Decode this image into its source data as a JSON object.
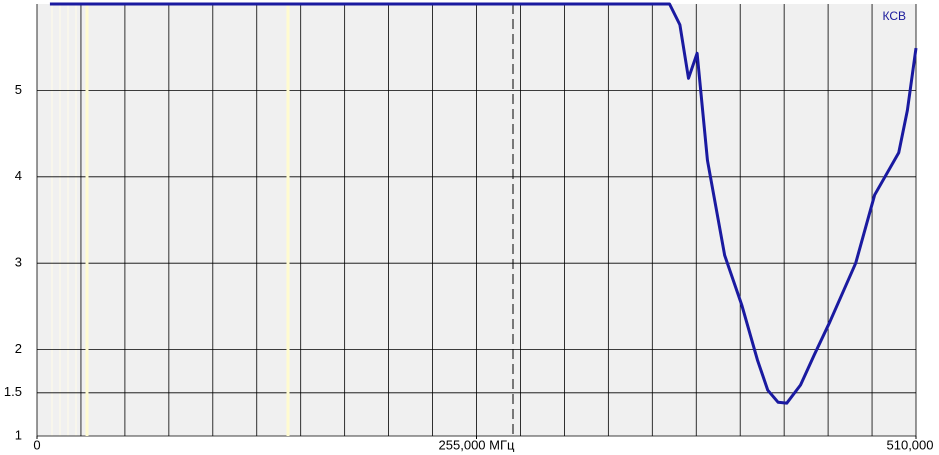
{
  "chart_data": {
    "type": "line",
    "title": "КСВ",
    "title_color": "#1a1a9c",
    "x": [
      7.5,
      367,
      373,
      378,
      383,
      389,
      399,
      409,
      418,
      424,
      430,
      435,
      443,
      451,
      460,
      475,
      486,
      500,
      505,
      510
    ],
    "series": [
      {
        "name": "КСВ",
        "color": "#1a1aa0",
        "values": [
          6,
          6,
          5.76,
          5.14,
          5.43,
          4.19,
          3.09,
          2.51,
          1.88,
          1.53,
          1.39,
          1.38,
          1.59,
          1.94,
          2.32,
          3.0,
          3.79,
          4.28,
          4.77,
          5.49
        ]
      }
    ],
    "xlim": [
      0,
      510
    ],
    "xticks": [
      0,
      {
        "value": 255,
        "label": "255,000 МГц"
      },
      {
        "value": 510,
        "label": "510,000"
      }
    ],
    "ylim": [
      1,
      6
    ],
    "yticks": [
      1,
      1.5,
      2,
      3,
      4,
      5
    ],
    "grid": true
  }
}
